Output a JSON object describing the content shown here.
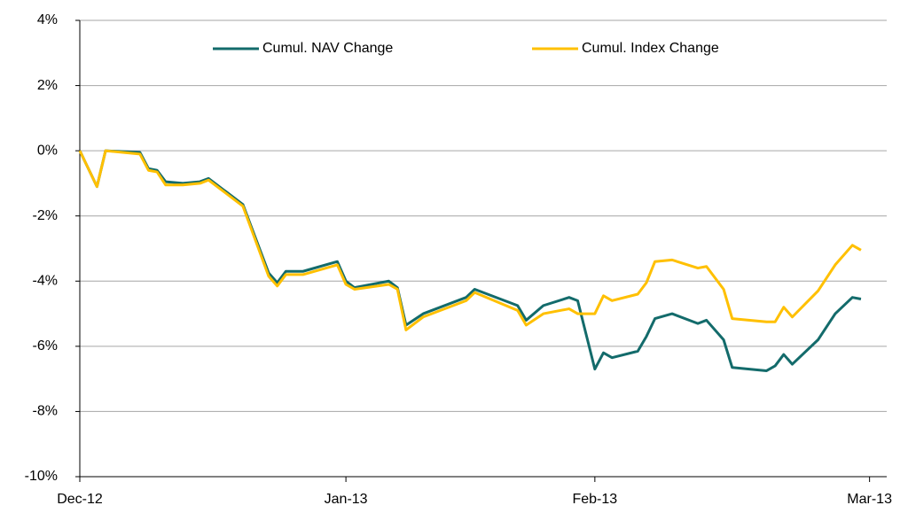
{
  "chart_data": {
    "type": "line",
    "x": [
      0,
      2,
      3,
      7,
      8,
      9,
      10,
      12,
      14,
      15,
      19,
      22,
      23,
      24,
      26,
      30,
      31,
      32,
      36,
      37,
      38,
      40,
      45,
      46,
      51,
      52,
      54,
      57,
      58,
      60,
      61,
      62,
      65,
      66,
      67,
      69,
      72,
      73,
      75,
      76,
      80,
      81,
      82,
      83,
      86,
      88,
      90,
      91
    ],
    "series": [
      {
        "name": "Cumul. NAV Change",
        "color": "#136b6b",
        "values": [
          0,
          -1.1,
          0,
          -0.05,
          -0.55,
          -0.6,
          -0.95,
          -1.0,
          -0.95,
          -0.85,
          -1.65,
          -3.75,
          -4.05,
          -3.7,
          -3.7,
          -3.4,
          -4.0,
          -4.2,
          -4.0,
          -4.2,
          -5.35,
          -5.0,
          -4.5,
          -4.25,
          -4.75,
          -5.2,
          -4.75,
          -4.5,
          -4.6,
          -6.7,
          -6.2,
          -6.35,
          -6.15,
          -5.7,
          -5.15,
          -5.0,
          -5.3,
          -5.2,
          -5.8,
          -6.65,
          -6.75,
          -6.6,
          -6.25,
          -6.55,
          -5.8,
          -5.0,
          -4.5,
          -4.55
        ]
      },
      {
        "name": "Cumul. Index Change",
        "color": "#ffc000",
        "values": [
          0,
          -1.1,
          0,
          -0.1,
          -0.6,
          -0.65,
          -1.05,
          -1.05,
          -1.0,
          -0.9,
          -1.7,
          -3.85,
          -4.15,
          -3.8,
          -3.8,
          -3.5,
          -4.1,
          -4.25,
          -4.1,
          -4.25,
          -5.5,
          -5.1,
          -4.6,
          -4.35,
          -4.9,
          -5.35,
          -5.0,
          -4.85,
          -5.0,
          -5.0,
          -4.45,
          -4.6,
          -4.4,
          -4.05,
          -3.4,
          -3.35,
          -3.6,
          -3.55,
          -4.25,
          -5.15,
          -5.25,
          -5.25,
          -4.8,
          -5.1,
          -4.3,
          -3.5,
          -2.9,
          -3.05
        ]
      }
    ],
    "xlim": [
      0,
      94
    ],
    "xticks": [
      {
        "value": 0,
        "label": "Dec-12"
      },
      {
        "value": 31,
        "label": "Jan-13"
      },
      {
        "value": 60,
        "label": "Feb-13"
      },
      {
        "value": 92,
        "label": "Mar-13"
      }
    ],
    "ylim": [
      -10,
      4
    ],
    "yticks": [
      {
        "value": -10,
        "label": "-10%"
      },
      {
        "value": -8,
        "label": "-8%"
      },
      {
        "value": -6,
        "label": "-6%"
      },
      {
        "value": -4,
        "label": "-4%"
      },
      {
        "value": -2,
        "label": "-2%"
      },
      {
        "value": 0,
        "label": "0%"
      },
      {
        "value": 2,
        "label": "2%"
      },
      {
        "value": 4,
        "label": "4%"
      }
    ],
    "grid": true,
    "legend": "top"
  }
}
